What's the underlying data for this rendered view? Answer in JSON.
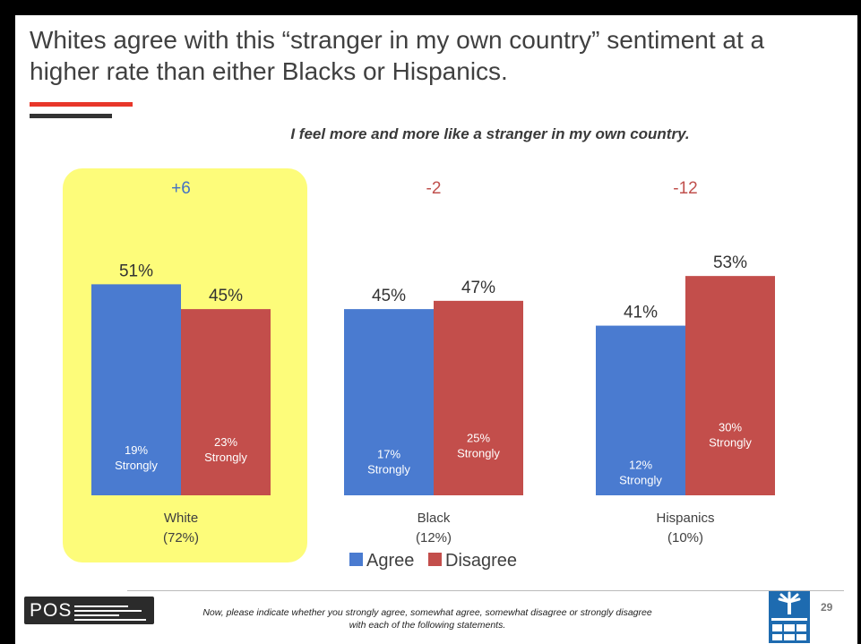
{
  "title": "Whites agree with this “stranger in my own country” sentiment at a higher rate than either Blacks or Hispanics.",
  "chart_data": {
    "type": "bar",
    "title": "I feel more and more like a stranger in my own country.",
    "categories": [
      "White",
      "Black",
      "Hispanics"
    ],
    "category_shares": [
      "(72%)",
      "(12%)",
      "(10%)"
    ],
    "net": [
      "+6",
      "-2",
      "-12"
    ],
    "net_colors": [
      "#4472c4",
      "#c0504d",
      "#c0504d"
    ],
    "series": [
      {
        "name": "Agree",
        "color": "#4a7bd0",
        "values": [
          51,
          45,
          41
        ],
        "strongly": [
          19,
          17,
          12
        ]
      },
      {
        "name": "Disagree",
        "color": "#c34e4b",
        "values": [
          45,
          47,
          53
        ],
        "strongly": [
          23,
          25,
          30
        ]
      }
    ],
    "strongly_label": "Strongly",
    "value_suffix": "%",
    "highlight_category": "White",
    "highlight_color": "#fdfc7a",
    "legend_position": "bottom",
    "grid": false
  },
  "footer": {
    "logo": "POS",
    "note": "Now, please indicate whether you strongly agree, somewhat agree, somewhat disagree or strongly disagree with each of the following statements.",
    "page": "29"
  }
}
